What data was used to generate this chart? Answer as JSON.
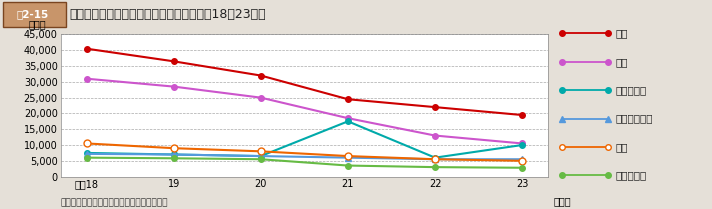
{
  "title_label": "図2-15",
  "title_text": "国籍・地域別の不法残留者数の推移（平成18～23年）",
  "ylabel": "（人）",
  "xlabel_suffix": "（年）",
  "note": "注：数値は法務省発表（各年１月１日現在）",
  "x_labels": [
    "平成18",
    "19",
    "20",
    "21",
    "22",
    "23"
  ],
  "x_values": [
    0,
    1,
    2,
    3,
    4,
    5
  ],
  "series": [
    {
      "name": "韓国",
      "color": "#cc0000",
      "marker": "o",
      "markersize": 4,
      "markerfacecolor": "#cc0000",
      "markeredgecolor": "#cc0000",
      "linewidth": 1.5,
      "values": [
        40500,
        36500,
        32000,
        24500,
        22000,
        19500
      ]
    },
    {
      "name": "中国",
      "color": "#cc55cc",
      "marker": "o",
      "markersize": 4,
      "markerfacecolor": "#cc55cc",
      "markeredgecolor": "#cc55cc",
      "linewidth": 1.5,
      "values": [
        31000,
        28500,
        25000,
        18500,
        13000,
        10500
      ]
    },
    {
      "name": "フィリピン",
      "color": "#00aaaa",
      "marker": "o",
      "markersize": 4,
      "markerfacecolor": "#00aaaa",
      "markeredgecolor": "#00aaaa",
      "linewidth": 1.5,
      "values": [
        7500,
        7000,
        6500,
        17500,
        6000,
        10000
      ]
    },
    {
      "name": "中国（台湾）",
      "color": "#5599dd",
      "marker": "^",
      "markersize": 4,
      "markerfacecolor": "#5599dd",
      "markeredgecolor": "#5599dd",
      "linewidth": 1.5,
      "values": [
        7200,
        7000,
        6500,
        6000,
        5500,
        5500
      ]
    },
    {
      "name": "タイ",
      "color": "#ee6600",
      "marker": "o",
      "markersize": 5,
      "markerfacecolor": "#ffffff",
      "markeredgecolor": "#ee6600",
      "linewidth": 1.5,
      "values": [
        10500,
        9000,
        8000,
        6500,
        5500,
        5000
      ]
    },
    {
      "name": "マレーシア",
      "color": "#66bb44",
      "marker": "o",
      "markersize": 4,
      "markerfacecolor": "#66bb44",
      "markeredgecolor": "#66bb44",
      "linewidth": 1.5,
      "values": [
        6000,
        5800,
        5500,
        3500,
        3000,
        2800
      ]
    }
  ],
  "ylim": [
    0,
    45000
  ],
  "yticks": [
    0,
    5000,
    10000,
    15000,
    20000,
    25000,
    30000,
    35000,
    40000,
    45000
  ],
  "bg_color": "#e5e0d8",
  "plot_bg_color": "#ffffff",
  "grid_color": "#aaaaaa",
  "title_box_facecolor": "#c8956a",
  "title_box_edgecolor": "#7a4520"
}
